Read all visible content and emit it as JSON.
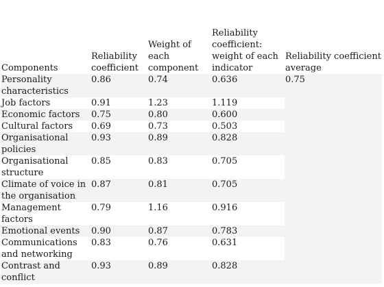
{
  "table": {
    "headers": [
      "Components",
      "Reliability coefficient",
      "Weight of each component",
      "Reliability coefficient: weight of each indicator",
      "Reliability coefficient average"
    ],
    "rows": [
      {
        "component": "Personality characteristics",
        "reliability": "0.86",
        "weight": "0.74",
        "indicator": "0.636",
        "average": "0.75"
      },
      {
        "component": "Job factors",
        "reliability": "0.91",
        "weight": "1.23",
        "indicator": "1.119",
        "average": ""
      },
      {
        "component": "Economic factors",
        "reliability": "0.75",
        "weight": "0.80",
        "indicator": "0.600",
        "average": ""
      },
      {
        "component": "Cultural factors",
        "reliability": "0.69",
        "weight": "0.73",
        "indicator": "0.503",
        "average": ""
      },
      {
        "component": "Organisational policies",
        "reliability": "0.93",
        "weight": "0.89",
        "indicator": "0.828",
        "average": ""
      },
      {
        "component": "Organisational structure",
        "reliability": "0.85",
        "weight": "0.83",
        "indicator": "0.705",
        "average": ""
      },
      {
        "component": "Climate of voice in the organisation",
        "reliability": "0.87",
        "weight": "0.81",
        "indicator": "0.705",
        "average": ""
      },
      {
        "component": "Management factors",
        "reliability": "0.79",
        "weight": "1.16",
        "indicator": "0.916",
        "average": ""
      },
      {
        "component": "Emotional events",
        "reliability": "0.90",
        "weight": "0.87",
        "indicator": "0.783",
        "average": ""
      },
      {
        "component": "Communications and networking",
        "reliability": "0.83",
        "weight": "0.76",
        "indicator": "0.631",
        "average": ""
      },
      {
        "component": "Contrast and conflict",
        "reliability": "0.93",
        "weight": "0.89",
        "indicator": "0.828",
        "average": ""
      }
    ]
  }
}
